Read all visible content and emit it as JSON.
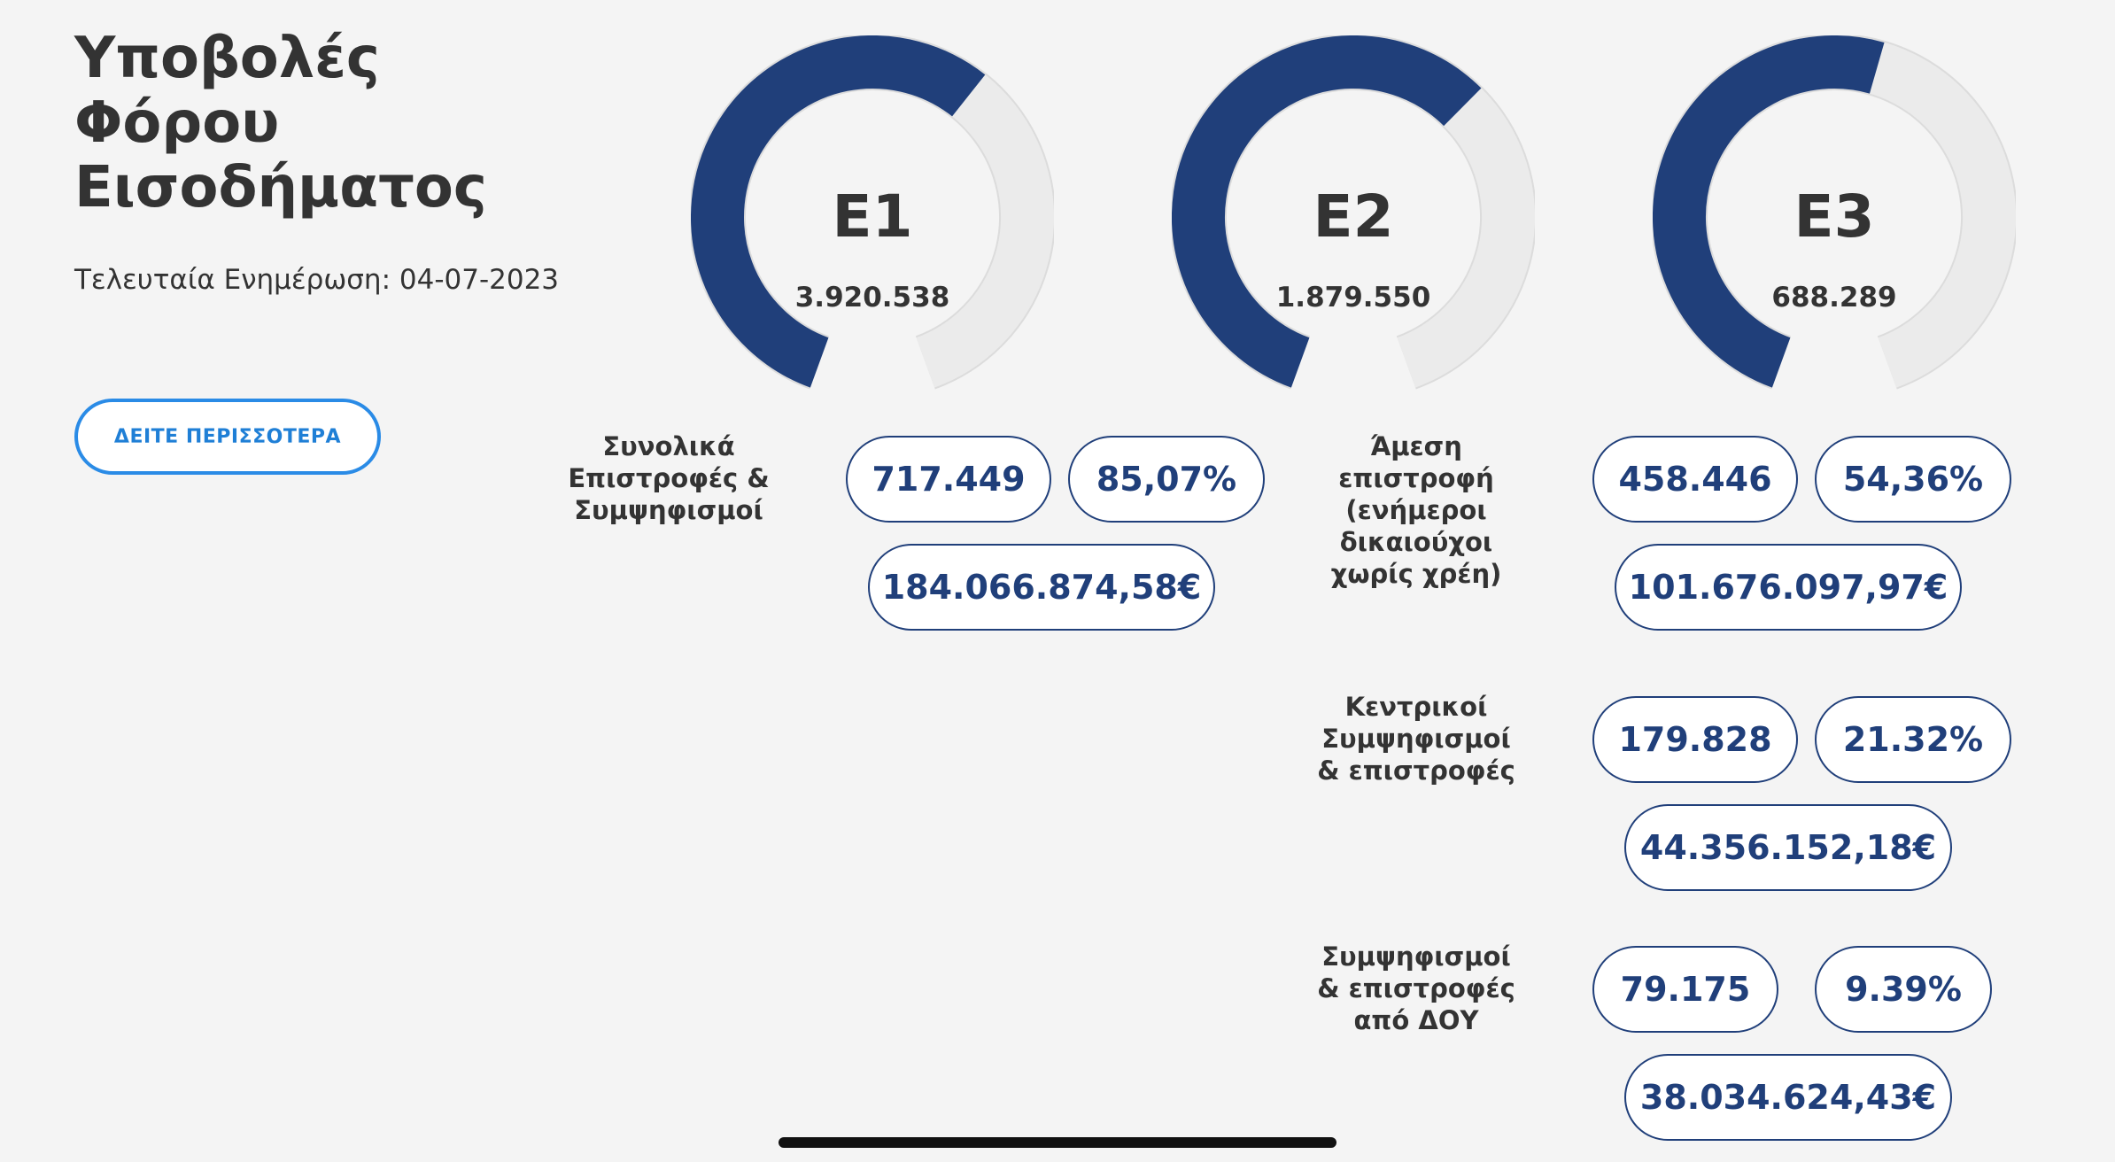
{
  "header": {
    "title": "Υποβολές\nΦόρου\nΕισοδήματος",
    "last_update": "Τελευταία Ενημέρωση: 04-07-2023",
    "more_button": "ΔΕΙΤΕ ΠΕΡΙΣΣΟΤΕΡΑ"
  },
  "gauges": [
    {
      "label": "E1",
      "count": "3.920.538",
      "fill_fraction": 0.62
    },
    {
      "label": "E2",
      "count": "1.879.550",
      "fill_fraction": 0.64
    },
    {
      "label": "E3",
      "count": "688.289",
      "fill_fraction": 0.55
    }
  ],
  "e1_stats": {
    "label": "Συνολικά\nΕπιστροφές &\nΣυμψηφισμοί",
    "count": "717.449",
    "percent": "85,07%",
    "amount": "184.066.874,58€"
  },
  "e3_stats": [
    {
      "label": "Άμεση\nεπιστροφή\n(ενήμεροι\nδικαιούχοι\nχωρίς χρέη)",
      "count": "458.446",
      "percent": "54,36%",
      "amount": "101.676.097,97€"
    },
    {
      "label": "Κεντρικοί\nΣυμψηφισμοί\n& επιστροφές",
      "count": "179.828",
      "percent": "21.32%",
      "amount": "44.356.152,18€"
    },
    {
      "label": "Συμψηφισμοί\n& επιστροφές\nαπό ΔΟΥ",
      "count": "79.175",
      "percent": "9.39%",
      "amount": "38.034.624,43€"
    }
  ],
  "colors": {
    "background": "#f4f4f4",
    "gauge_fill": "#203f7a",
    "gauge_track": "#ebebeb",
    "pill_text": "#203f7a",
    "button_accent": "#2a8be6"
  }
}
